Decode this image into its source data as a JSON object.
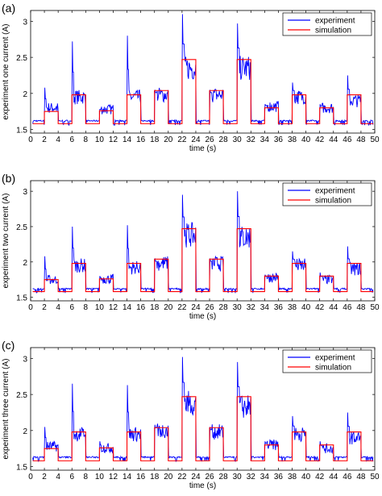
{
  "colors": {
    "experiment": "#0000ff",
    "simulation": "#ff0000",
    "axis": "#000000"
  },
  "chart_data": [
    {
      "panel_label": "(a)",
      "type": "line",
      "xlabel": "time (s)",
      "ylabel": "experiment one current (A)",
      "xlim": [
        0,
        50
      ],
      "ylim": [
        1.45,
        3.15
      ],
      "xticks": [
        "0",
        "2",
        "4",
        "6",
        "8",
        "10",
        "12",
        "14",
        "16",
        "18",
        "20",
        "22",
        "24",
        "26",
        "28",
        "30",
        "32",
        "34",
        "36",
        "38",
        "40",
        "42",
        "44",
        "46",
        "48",
        "50"
      ],
      "yticks": [
        "1.5",
        "2",
        "2.5",
        "3"
      ],
      "legend": {
        "position": "top-right",
        "entries": [
          "experiment",
          "simulation"
        ]
      },
      "series": [
        {
          "name": "simulation",
          "pulses": [
            {
              "start": 2,
              "end": 4,
              "level": 1.75
            },
            {
              "start": 6,
              "end": 8,
              "level": 1.98
            },
            {
              "start": 10,
              "end": 12,
              "level": 1.76
            },
            {
              "start": 14,
              "end": 16,
              "level": 1.98
            },
            {
              "start": 18,
              "end": 20,
              "level": 2.04
            },
            {
              "start": 22,
              "end": 24,
              "level": 2.47
            },
            {
              "start": 26,
              "end": 28,
              "level": 2.04
            },
            {
              "start": 30,
              "end": 32,
              "level": 2.47
            },
            {
              "start": 34,
              "end": 36,
              "level": 1.8
            },
            {
              "start": 38,
              "end": 40,
              "level": 1.98
            },
            {
              "start": 42,
              "end": 44,
              "level": 1.8
            },
            {
              "start": 46,
              "end": 48,
              "level": 1.98
            }
          ],
          "baseline": 1.58
        },
        {
          "name": "experiment",
          "baseline": 1.62,
          "pulses": [
            {
              "start": 2,
              "end": 4,
              "plateau": 1.8,
              "spike": 2.08
            },
            {
              "start": 6,
              "end": 8,
              "plateau": 1.95,
              "spike": 2.72
            },
            {
              "start": 10,
              "end": 12,
              "plateau": 1.78,
              "spike": 1.78
            },
            {
              "start": 14,
              "end": 16,
              "plateau": 1.95,
              "spike": 2.8
            },
            {
              "start": 18,
              "end": 20,
              "plateau": 1.98,
              "spike": 2.05
            },
            {
              "start": 22,
              "end": 24,
              "plateau": 2.35,
              "spike": 3.1
            },
            {
              "start": 26,
              "end": 28,
              "plateau": 1.98,
              "spike": 2.05
            },
            {
              "start": 30,
              "end": 32,
              "plateau": 2.35,
              "spike": 2.97
            },
            {
              "start": 34,
              "end": 36,
              "plateau": 1.82,
              "spike": 1.85
            },
            {
              "start": 38,
              "end": 40,
              "plateau": 1.95,
              "spike": 2.15
            },
            {
              "start": 42,
              "end": 44,
              "plateau": 1.8,
              "spike": 1.85
            },
            {
              "start": 46,
              "end": 48,
              "plateau": 1.9,
              "spike": 2.25
            }
          ]
        }
      ]
    },
    {
      "panel_label": "(b)",
      "type": "line",
      "xlabel": "time (s)",
      "ylabel": "experiment two current (A)",
      "xlim": [
        0,
        50
      ],
      "ylim": [
        1.45,
        3.15
      ],
      "xticks": [
        "0",
        "2",
        "4",
        "6",
        "8",
        "10",
        "12",
        "14",
        "16",
        "18",
        "20",
        "22",
        "24",
        "26",
        "28",
        "30",
        "32",
        "34",
        "36",
        "38",
        "40",
        "42",
        "44",
        "46",
        "48",
        "50"
      ],
      "yticks": [
        "1.5",
        "2",
        "2.5",
        "3"
      ],
      "legend": {
        "position": "top-right",
        "entries": [
          "experiment",
          "simulation"
        ]
      },
      "series": [
        {
          "name": "simulation",
          "pulses": [
            {
              "start": 2,
              "end": 4,
              "level": 1.75
            },
            {
              "start": 6,
              "end": 8,
              "level": 1.98
            },
            {
              "start": 10,
              "end": 12,
              "level": 1.76
            },
            {
              "start": 14,
              "end": 16,
              "level": 1.98
            },
            {
              "start": 18,
              "end": 20,
              "level": 2.04
            },
            {
              "start": 22,
              "end": 24,
              "level": 2.47
            },
            {
              "start": 26,
              "end": 28,
              "level": 2.04
            },
            {
              "start": 30,
              "end": 32,
              "level": 2.47
            },
            {
              "start": 34,
              "end": 36,
              "level": 1.8
            },
            {
              "start": 38,
              "end": 40,
              "level": 1.98
            },
            {
              "start": 42,
              "end": 44,
              "level": 1.8
            },
            {
              "start": 46,
              "end": 48,
              "level": 1.98
            }
          ],
          "baseline": 1.58
        },
        {
          "name": "experiment",
          "baseline": 1.62,
          "pulses": [
            {
              "start": 2,
              "end": 4,
              "plateau": 1.75,
              "spike": 2.08
            },
            {
              "start": 6,
              "end": 8,
              "plateau": 1.95,
              "spike": 2.5
            },
            {
              "start": 10,
              "end": 12,
              "plateau": 1.76,
              "spike": 1.8
            },
            {
              "start": 14,
              "end": 16,
              "plateau": 1.92,
              "spike": 2.52
            },
            {
              "start": 18,
              "end": 20,
              "plateau": 1.98,
              "spike": 2.05
            },
            {
              "start": 22,
              "end": 24,
              "plateau": 2.38,
              "spike": 2.95
            },
            {
              "start": 26,
              "end": 28,
              "plateau": 1.98,
              "spike": 2.05
            },
            {
              "start": 30,
              "end": 32,
              "plateau": 2.35,
              "spike": 3.0
            },
            {
              "start": 34,
              "end": 36,
              "plateau": 1.78,
              "spike": 1.82
            },
            {
              "start": 38,
              "end": 40,
              "plateau": 1.95,
              "spike": 2.15
            },
            {
              "start": 42,
              "end": 44,
              "plateau": 1.75,
              "spike": 1.85
            },
            {
              "start": 46,
              "end": 48,
              "plateau": 1.9,
              "spike": 2.22
            }
          ]
        }
      ]
    },
    {
      "panel_label": "(c)",
      "type": "line",
      "xlabel": "time (s)",
      "ylabel": "experiment three current (A)",
      "xlim": [
        0,
        50
      ],
      "ylim": [
        1.45,
        3.15
      ],
      "xticks": [
        "0",
        "2",
        "4",
        "6",
        "8",
        "10",
        "12",
        "14",
        "16",
        "18",
        "20",
        "22",
        "24",
        "26",
        "28",
        "30",
        "32",
        "34",
        "36",
        "38",
        "40",
        "42",
        "44",
        "46",
        "48",
        "50"
      ],
      "yticks": [
        "1.5",
        "2",
        "2.5",
        "3"
      ],
      "legend": {
        "position": "top-right",
        "entries": [
          "experiment",
          "simulation"
        ]
      },
      "series": [
        {
          "name": "simulation",
          "pulses": [
            {
              "start": 2,
              "end": 4,
              "level": 1.75
            },
            {
              "start": 6,
              "end": 8,
              "level": 1.98
            },
            {
              "start": 10,
              "end": 12,
              "level": 1.76
            },
            {
              "start": 14,
              "end": 16,
              "level": 1.98
            },
            {
              "start": 18,
              "end": 20,
              "level": 2.04
            },
            {
              "start": 22,
              "end": 24,
              "level": 2.47
            },
            {
              "start": 26,
              "end": 28,
              "level": 2.04
            },
            {
              "start": 30,
              "end": 32,
              "level": 2.47
            },
            {
              "start": 34,
              "end": 36,
              "level": 1.8
            },
            {
              "start": 38,
              "end": 40,
              "level": 1.98
            },
            {
              "start": 42,
              "end": 44,
              "level": 1.8
            },
            {
              "start": 46,
              "end": 48,
              "level": 1.98
            }
          ],
          "baseline": 1.58
        },
        {
          "name": "experiment",
          "baseline": 1.63,
          "pulses": [
            {
              "start": 2,
              "end": 4,
              "plateau": 1.78,
              "spike": 2.05
            },
            {
              "start": 6,
              "end": 8,
              "plateau": 1.95,
              "spike": 2.65
            },
            {
              "start": 10,
              "end": 12,
              "plateau": 1.76,
              "spike": 1.85
            },
            {
              "start": 14,
              "end": 16,
              "plateau": 1.95,
              "spike": 2.63
            },
            {
              "start": 18,
              "end": 20,
              "plateau": 2.0,
              "spike": 2.08
            },
            {
              "start": 22,
              "end": 24,
              "plateau": 2.38,
              "spike": 3.02
            },
            {
              "start": 26,
              "end": 28,
              "plateau": 1.98,
              "spike": 2.05
            },
            {
              "start": 30,
              "end": 32,
              "plateau": 2.33,
              "spike": 2.95
            },
            {
              "start": 34,
              "end": 36,
              "plateau": 1.8,
              "spike": 1.85
            },
            {
              "start": 38,
              "end": 40,
              "plateau": 1.95,
              "spike": 2.2
            },
            {
              "start": 42,
              "end": 44,
              "plateau": 1.75,
              "spike": 1.85
            },
            {
              "start": 46,
              "end": 48,
              "plateau": 1.9,
              "spike": 2.25
            }
          ]
        }
      ]
    }
  ]
}
